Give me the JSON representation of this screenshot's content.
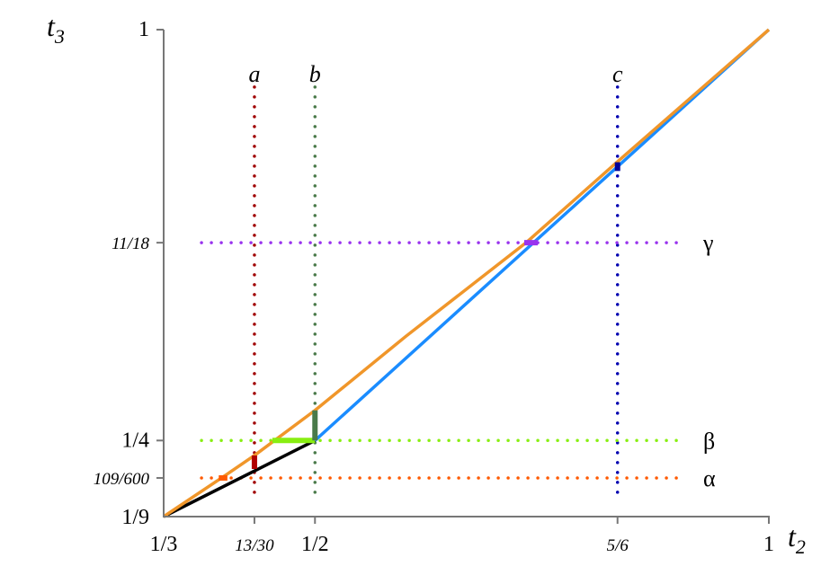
{
  "chart_data": {
    "type": "line",
    "xlabel": "t",
    "xlabel_sub": "2",
    "ylabel": "t",
    "ylabel_sub": "3",
    "xlim": [
      0.3333,
      1
    ],
    "ylim": [
      0.1111,
      1
    ],
    "x_ticks": [
      {
        "value": 0.3333,
        "label": "1/3",
        "italic": false
      },
      {
        "value": 0.4333,
        "label": "13/30",
        "italic": true
      },
      {
        "value": 0.5,
        "label": "1/2",
        "italic": false
      },
      {
        "value": 0.8333,
        "label": "5/6",
        "italic": true
      },
      {
        "value": 1,
        "label": "1",
        "italic": false
      }
    ],
    "y_ticks": [
      {
        "value": 0.1111,
        "label": "1/9",
        "italic": false
      },
      {
        "value": 0.18167,
        "label": "109/600",
        "italic": true
      },
      {
        "value": 0.25,
        "label": "1/4",
        "italic": false
      },
      {
        "value": 0.6111,
        "label": "11/18",
        "italic": true
      },
      {
        "value": 1,
        "label": "1",
        "italic": false
      }
    ],
    "series": [
      {
        "color": "#000000",
        "points": [
          [
            0.3333,
            0.1111
          ],
          [
            0.5,
            0.25
          ]
        ]
      },
      {
        "color": "#1a8cff",
        "points": [
          [
            0.5,
            0.25
          ],
          [
            1,
            1
          ]
        ]
      },
      {
        "color": "#f0962a",
        "points": [
          [
            0.3333,
            0.1111
          ],
          [
            0.4,
            0.185
          ],
          [
            0.4333,
            0.2227
          ],
          [
            0.5,
            0.305
          ],
          [
            0.6,
            0.44
          ],
          [
            0.7325,
            0.6111
          ],
          [
            0.8333,
            0.759
          ],
          [
            1,
            1
          ]
        ]
      }
    ],
    "vertical_guides": [
      {
        "x": 0.4333,
        "label": "a",
        "color": "#a00000",
        "range": [
          0.1555,
          0.9
        ]
      },
      {
        "x": 0.5,
        "label": "b",
        "color": "#4a7a4a",
        "range": [
          0.1555,
          0.9
        ]
      },
      {
        "x": 0.8333,
        "label": "c",
        "color": "#0000b0",
        "range": [
          0.1555,
          0.9
        ]
      }
    ],
    "horizontal_guides": [
      {
        "y": 0.6111,
        "label": "γ",
        "color": "#9933ee",
        "range": [
          0.375,
          0.9
        ]
      },
      {
        "y": 0.25,
        "label": "β",
        "color": "#88ee11",
        "range": [
          0.375,
          0.9
        ]
      },
      {
        "y": 0.18167,
        "label": "α",
        "color": "#ff5a00",
        "range": [
          0.375,
          0.9
        ]
      }
    ],
    "highlights": [
      {
        "name": "alpha-segment",
        "color": "#ff5a00",
        "orient": "h",
        "y": 0.18167,
        "from": 0.394,
        "to": 0.4035
      },
      {
        "name": "a-segment",
        "color": "#b00000",
        "orient": "v",
        "x": 0.4333,
        "from": 0.198,
        "to": 0.2227
      },
      {
        "name": "beta-segment",
        "color": "#88ee11",
        "orient": "h",
        "y": 0.25,
        "from": 0.453,
        "to": 0.5
      },
      {
        "name": "b-segment",
        "color": "#4a7a4a",
        "orient": "v",
        "x": 0.5,
        "from": 0.25,
        "to": 0.305
      },
      {
        "name": "gamma-segment",
        "color": "#9933ee",
        "orient": "h",
        "y": 0.6111,
        "from": 0.7305,
        "to": 0.7455
      },
      {
        "name": "c-segment",
        "color": "#000099",
        "orient": "v",
        "x": 0.8333,
        "from": 0.742,
        "to": 0.758
      }
    ]
  }
}
